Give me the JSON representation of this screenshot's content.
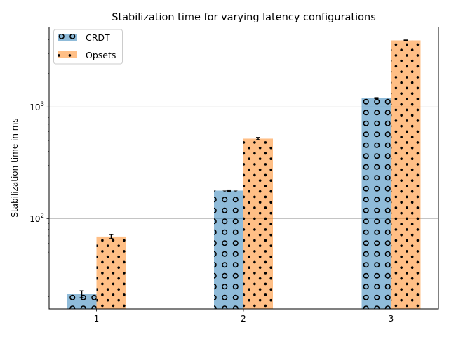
{
  "chart_data": {
    "type": "bar",
    "title": "Stabilization time for varying latency configurations",
    "xlabel": "",
    "ylabel": "Stabilization time in ms",
    "yscale": "log",
    "ylim": [
      15.5,
      5200
    ],
    "grid": "y-major",
    "legend_position": "top-left",
    "categories": [
      "1",
      "2",
      "3"
    ],
    "yticks": [
      {
        "value": 100,
        "base": "10",
        "exp": "2"
      },
      {
        "value": 1000,
        "base": "10",
        "exp": "3"
      }
    ],
    "series": [
      {
        "name": "CRDT",
        "values": [
          21,
          178,
          1200
        ],
        "errors": [
          1.5,
          2,
          10
        ],
        "color": "#1f77b4",
        "fill_opacity": 0.5,
        "hatch": "o"
      },
      {
        "name": "Opsets",
        "values": [
          69,
          520,
          3950
        ],
        "errors": [
          3,
          12,
          25
        ],
        "color": "#ff7f0e",
        "fill_opacity": 0.5,
        "hatch": "."
      }
    ]
  }
}
